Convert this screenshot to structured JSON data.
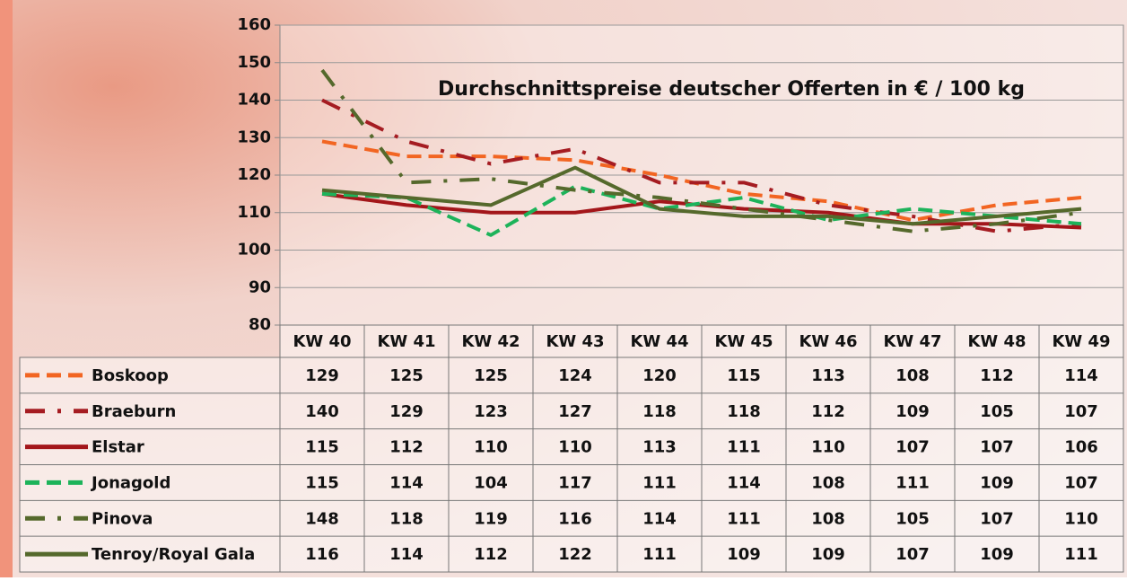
{
  "chart_data": {
    "type": "line",
    "title": "Durchschnittspreise deutscher Offerten in € / 100 kg",
    "categories": [
      "KW 40",
      "KW 41",
      "KW 42",
      "KW 43",
      "KW 44",
      "KW 45",
      "KW 46",
      "KW 47",
      "KW 48",
      "KW 49"
    ],
    "ylim": [
      80,
      160
    ],
    "yticks": [
      80,
      90,
      100,
      110,
      120,
      130,
      140,
      150,
      160
    ],
    "grid": true,
    "series": [
      {
        "name": "Boskoop",
        "color": "#f26522",
        "style": "dashed",
        "values": [
          129,
          125,
          125,
          124,
          120,
          115,
          113,
          108,
          112,
          114
        ]
      },
      {
        "name": "Braeburn",
        "color": "#a51c22",
        "style": "dashdot",
        "values": [
          140,
          129,
          123,
          127,
          118,
          118,
          112,
          109,
          105,
          107
        ]
      },
      {
        "name": "Elstar",
        "color": "#a3161a",
        "style": "solid",
        "values": [
          115,
          112,
          110,
          110,
          113,
          111,
          110,
          107,
          107,
          106
        ]
      },
      {
        "name": "Jonagold",
        "color": "#1db35a",
        "style": "dashed",
        "values": [
          115,
          114,
          104,
          117,
          111,
          114,
          108,
          111,
          109,
          107
        ]
      },
      {
        "name": "Pinova",
        "color": "#55692c",
        "style": "dashdot",
        "values": [
          148,
          118,
          119,
          116,
          114,
          111,
          108,
          105,
          107,
          110
        ]
      },
      {
        "name": "Tenroy/Royal Gala",
        "color": "#55692c",
        "style": "solid",
        "values": [
          116,
          114,
          112,
          122,
          111,
          109,
          109,
          107,
          109,
          111
        ]
      }
    ]
  }
}
